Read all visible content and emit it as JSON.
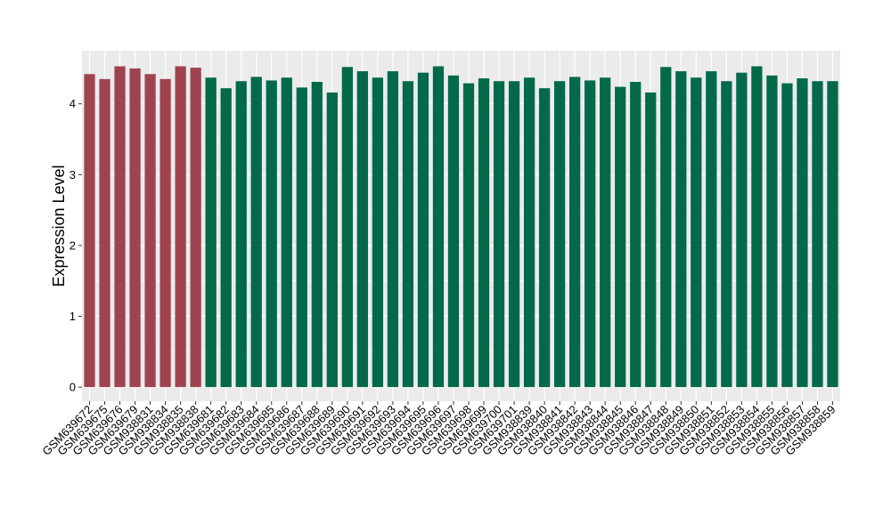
{
  "chart_data": {
    "type": "bar",
    "title": "",
    "xlabel": "",
    "ylabel": "Expression Level",
    "ylim": [
      -0.2,
      4.75
    ],
    "yticks": [
      0,
      1,
      2,
      3,
      4
    ],
    "grid": true,
    "colors": {
      "groupA": "#9e4450",
      "groupB": "#02694a",
      "panel": "#ebebeb",
      "grid": "#ffffff"
    },
    "categories": [
      "GSM639672",
      "GSM639675",
      "GSM639676",
      "GSM639679",
      "GSM938831",
      "GSM938834",
      "GSM938835",
      "GSM938838",
      "GSM639681",
      "GSM639682",
      "GSM639683",
      "GSM639684",
      "GSM639685",
      "GSM639686",
      "GSM639687",
      "GSM639688",
      "GSM639689",
      "GSM639690",
      "GSM639691",
      "GSM639692",
      "GSM639693",
      "GSM639694",
      "GSM639695",
      "GSM639696",
      "GSM639697",
      "GSM639698",
      "GSM639699",
      "GSM639700",
      "GSM639701",
      "GSM938839",
      "GSM938840",
      "GSM938841",
      "GSM938842",
      "GSM938843",
      "GSM938844",
      "GSM938845",
      "GSM938846",
      "GSM938847",
      "GSM938848",
      "GSM938849",
      "GSM938850",
      "GSM938851",
      "GSM938852",
      "GSM938853",
      "GSM938854",
      "GSM938855",
      "GSM938856",
      "GSM938857",
      "GSM938858",
      "GSM938859"
    ],
    "values": [
      4.42,
      4.35,
      4.53,
      4.5,
      4.42,
      4.35,
      4.53,
      4.51,
      4.37,
      4.22,
      4.32,
      4.38,
      4.33,
      4.37,
      4.23,
      4.31,
      4.16,
      4.52,
      4.46,
      4.37,
      4.46,
      4.32,
      4.44,
      4.53,
      4.4,
      4.29,
      4.36,
      4.32,
      4.32,
      4.37,
      4.22,
      4.32,
      4.38,
      4.33,
      4.37,
      4.24,
      4.31,
      4.16,
      4.52,
      4.46,
      4.37,
      4.46,
      4.32,
      4.44,
      4.53,
      4.4,
      4.29,
      4.36,
      4.32,
      4.32
    ],
    "groups": [
      "A",
      "A",
      "A",
      "A",
      "A",
      "A",
      "A",
      "A",
      "B",
      "B",
      "B",
      "B",
      "B",
      "B",
      "B",
      "B",
      "B",
      "B",
      "B",
      "B",
      "B",
      "B",
      "B",
      "B",
      "B",
      "B",
      "B",
      "B",
      "B",
      "B",
      "B",
      "B",
      "B",
      "B",
      "B",
      "B",
      "B",
      "B",
      "B",
      "B",
      "B",
      "B",
      "B",
      "B",
      "B",
      "B",
      "B",
      "B",
      "B",
      "B"
    ]
  }
}
